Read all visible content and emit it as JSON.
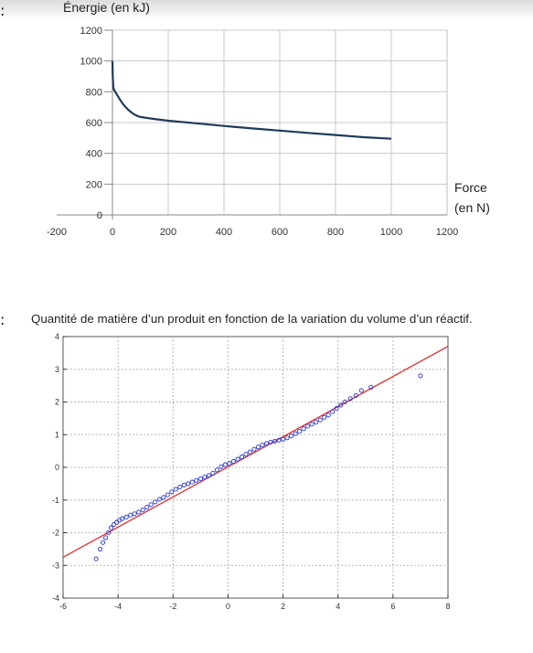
{
  "chart_data": [
    {
      "type": "line",
      "title": "",
      "ylabel": "Énergie (en kJ)",
      "xlabel": "Force (en N)",
      "xlabel_lines": [
        "Force",
        "(en N)"
      ],
      "xlim": [
        -200,
        1200
      ],
      "ylim": [
        0,
        1200
      ],
      "x_ticks": [
        -200,
        0,
        200,
        400,
        600,
        800,
        1000,
        1200
      ],
      "y_ticks": [
        0,
        200,
        400,
        600,
        800,
        1000,
        1200
      ],
      "grid": true,
      "series": [
        {
          "color": "#1f3b5a",
          "x": [
            0,
            1,
            3,
            5,
            10,
            20,
            30,
            40,
            50,
            60,
            70,
            80,
            90,
            100,
            150,
            200,
            300,
            400,
            500,
            600,
            700,
            800,
            900,
            1000
          ],
          "y": [
            1000,
            900,
            830,
            815,
            800,
            770,
            740,
            715,
            695,
            678,
            663,
            651,
            642,
            636,
            623,
            612,
            595,
            578,
            562,
            548,
            533,
            519,
            505,
            495
          ]
        }
      ]
    },
    {
      "type": "scatter",
      "title": "Quantité de matière d’un produit en fonction de la variation du volume d’un réactif.",
      "xlabel": "",
      "ylabel": "",
      "xlim": [
        -6,
        8
      ],
      "ylim": [
        -4,
        4
      ],
      "x_ticks": [
        -6,
        -4,
        -2,
        0,
        2,
        4,
        6,
        8
      ],
      "y_ticks": [
        -4,
        -3,
        -2,
        -1,
        0,
        1,
        2,
        3,
        4
      ],
      "grid": true,
      "fit_line": {
        "color": "#e03030",
        "x": [
          -6,
          8
        ],
        "y": [
          -2.75,
          3.7
        ]
      },
      "series": [
        {
          "color": "#2233cc",
          "x": [
            -4.8,
            -4.65,
            -4.55,
            -4.45,
            -4.35,
            -4.25,
            -4.15,
            -4.05,
            -3.95,
            -3.85,
            -3.7,
            -3.55,
            -3.4,
            -3.25,
            -3.1,
            -2.95,
            -2.8,
            -2.65,
            -2.5,
            -2.35,
            -2.2,
            -2.05,
            -1.9,
            -1.75,
            -1.6,
            -1.45,
            -1.3,
            -1.15,
            -1.0,
            -0.85,
            -0.7,
            -0.55,
            -0.4,
            -0.25,
            -0.1,
            0.05,
            0.2,
            0.35,
            0.5,
            0.65,
            0.8,
            0.95,
            1.1,
            1.25,
            1.4,
            1.55,
            1.7,
            1.85,
            2.0,
            2.15,
            2.3,
            2.45,
            2.6,
            2.75,
            2.9,
            3.05,
            3.2,
            3.35,
            3.5,
            3.65,
            3.8,
            3.95,
            4.1,
            4.25,
            4.45,
            4.65,
            4.85,
            5.2,
            7.0
          ],
          "y": [
            -2.8,
            -2.5,
            -2.3,
            -2.15,
            -2.0,
            -1.85,
            -1.75,
            -1.68,
            -1.62,
            -1.57,
            -1.52,
            -1.46,
            -1.42,
            -1.37,
            -1.3,
            -1.22,
            -1.14,
            -1.06,
            -0.98,
            -0.92,
            -0.84,
            -0.75,
            -0.67,
            -0.6,
            -0.54,
            -0.5,
            -0.45,
            -0.4,
            -0.35,
            -0.3,
            -0.25,
            -0.18,
            -0.08,
            0.02,
            0.08,
            0.12,
            0.18,
            0.25,
            0.32,
            0.4,
            0.47,
            0.55,
            0.62,
            0.68,
            0.73,
            0.77,
            0.8,
            0.83,
            0.86,
            0.9,
            0.96,
            1.03,
            1.1,
            1.18,
            1.26,
            1.32,
            1.38,
            1.45,
            1.53,
            1.6,
            1.7,
            1.8,
            1.9,
            2.0,
            2.1,
            2.2,
            2.35,
            2.45,
            2.8
          ]
        }
      ]
    }
  ]
}
